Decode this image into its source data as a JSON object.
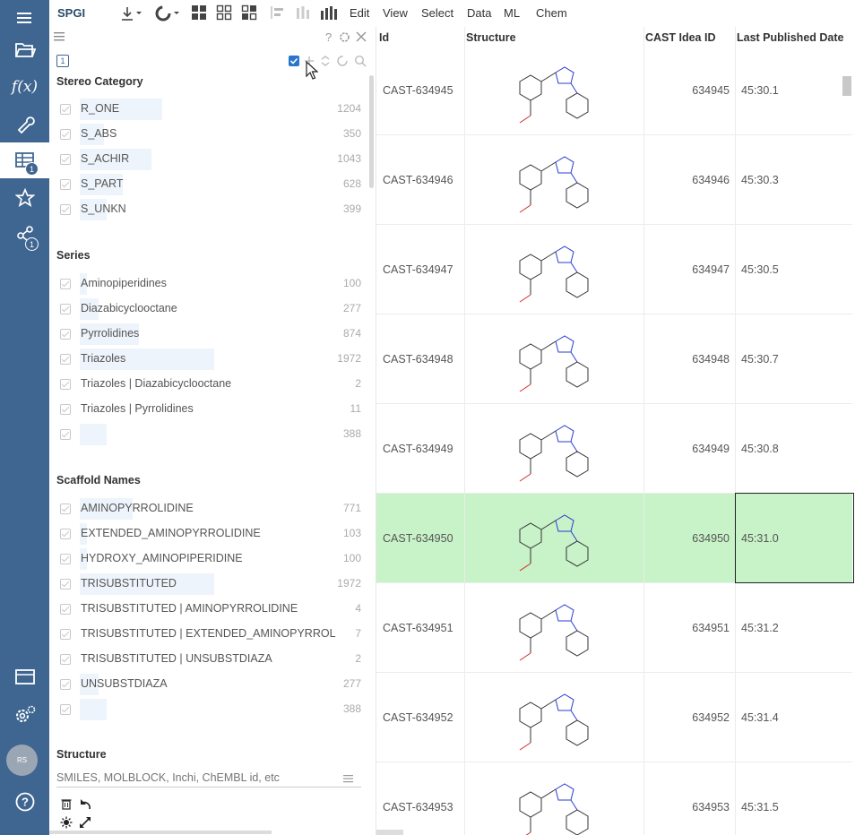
{
  "app": {
    "name": "SPGI",
    "menu": [
      "Edit",
      "View",
      "Select",
      "Data",
      "ML",
      "Chem"
    ]
  },
  "sidebar": {
    "items": [
      {
        "name": "menu-icon"
      },
      {
        "name": "open-folder-icon"
      },
      {
        "name": "function-icon",
        "glyph": "f(x)"
      },
      {
        "name": "tools-icon"
      },
      {
        "name": "table-icon",
        "badge": "1"
      },
      {
        "name": "favorites-icon"
      },
      {
        "name": "connections-icon",
        "badge": "1"
      },
      {
        "name": "windows-icon"
      },
      {
        "name": "settings-icon"
      },
      {
        "name": "help-icon"
      }
    ],
    "avatar": "RS"
  },
  "filters": {
    "count_badge": "1",
    "stereo": {
      "title": "Stereo Category",
      "items": [
        {
          "label": "R_ONE",
          "count": "1204",
          "frac": 0.61
        },
        {
          "label": "S_ABS",
          "count": "350",
          "frac": 0.18
        },
        {
          "label": "S_ACHIR",
          "count": "1043",
          "frac": 0.53
        },
        {
          "label": "S_PART",
          "count": "628",
          "frac": 0.32
        },
        {
          "label": "S_UNKN",
          "count": "399",
          "frac": 0.2
        }
      ]
    },
    "series": {
      "title": "Series",
      "items": [
        {
          "label": "Aminopiperidines",
          "count": "100",
          "frac": 0.05
        },
        {
          "label": "Diazabicyclooctane",
          "count": "277",
          "frac": 0.14
        },
        {
          "label": "Pyrrolidines",
          "count": "874",
          "frac": 0.44
        },
        {
          "label": "Triazoles",
          "count": "1972",
          "frac": 1.0
        },
        {
          "label": "Triazoles | Diazabicyclooctane",
          "count": "2",
          "frac": 0.0
        },
        {
          "label": "Triazoles | Pyrrolidines",
          "count": "11",
          "frac": 0.01
        },
        {
          "label": "",
          "count": "388",
          "frac": 0.2
        }
      ]
    },
    "scaffold": {
      "title": "Scaffold Names",
      "items": [
        {
          "label": "AMINOPYRROLIDINE",
          "count": "771",
          "frac": 0.39
        },
        {
          "label": "EXTENDED_AMINOPYRROLIDINE",
          "count": "103",
          "frac": 0.05
        },
        {
          "label": "HYDROXY_AMINOPIPERIDINE",
          "count": "100",
          "frac": 0.05
        },
        {
          "label": "TRISUBSTITUTED",
          "count": "1972",
          "frac": 1.0
        },
        {
          "label": "TRISUBSTITUTED | AMINOPYRROLIDINE",
          "count": "4",
          "frac": 0.0
        },
        {
          "label": "TRISUBSTITUTED | EXTENDED_AMINOPYRROL",
          "count": "7",
          "frac": 0.0
        },
        {
          "label": "TRISUBSTITUTED | UNSUBSTDIAZA",
          "count": "2",
          "frac": 0.0
        },
        {
          "label": "UNSUBSTDIAZA",
          "count": "277",
          "frac": 0.14
        },
        {
          "label": "",
          "count": "388",
          "frac": 0.2
        }
      ]
    },
    "structure": {
      "title": "Structure",
      "placeholder": "SMILES, MOLBLOCK, Inchi, ChEMBL id, etc"
    }
  },
  "grid": {
    "columns": [
      "Id",
      "Structure",
      "CAST Idea ID",
      "Last Published Date"
    ],
    "rows": [
      {
        "id": "CAST-634945",
        "idea": "634945",
        "date": "45:30.1"
      },
      {
        "id": "CAST-634946",
        "idea": "634946",
        "date": "45:30.3"
      },
      {
        "id": "CAST-634947",
        "idea": "634947",
        "date": "45:30.5"
      },
      {
        "id": "CAST-634948",
        "idea": "634948",
        "date": "45:30.7"
      },
      {
        "id": "CAST-634949",
        "idea": "634949",
        "date": "45:30.8"
      },
      {
        "id": "CAST-634950",
        "idea": "634950",
        "date": "45:31.0",
        "selected": true
      },
      {
        "id": "CAST-634951",
        "idea": "634951",
        "date": "45:31.2"
      },
      {
        "id": "CAST-634952",
        "idea": "634952",
        "date": "45:31.4"
      },
      {
        "id": "CAST-634953",
        "idea": "634953",
        "date": "45:31.5"
      }
    ]
  },
  "colors": {
    "sidebar": "#3f6691",
    "selected_row": "#c8f2c8",
    "filter_bar": "#eef4fb"
  }
}
